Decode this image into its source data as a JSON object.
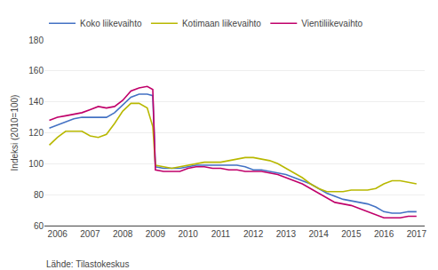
{
  "chart_data": {
    "type": "line",
    "y_label": "Indeksi (2010=100)",
    "annotations": [
      "Lähde: Tilastokeskus"
    ],
    "xlim": [
      2005.6,
      2017.25
    ],
    "xticks": [
      2006,
      2007,
      2008,
      2009,
      2010,
      2011,
      2012,
      2013,
      2014,
      2015,
      2016,
      2017
    ],
    "ylim": [
      60,
      180
    ],
    "yticks": [
      60,
      80,
      100,
      120,
      140,
      160,
      180
    ],
    "grid": "y",
    "legend": "top",
    "x": [
      2005.75,
      2006.0,
      2006.25,
      2006.5,
      2006.75,
      2007.0,
      2007.25,
      2007.5,
      2007.75,
      2008.0,
      2008.25,
      2008.5,
      2008.75,
      2008.92,
      2009.0,
      2009.25,
      2009.5,
      2009.75,
      2010.0,
      2010.25,
      2010.5,
      2010.75,
      2011.0,
      2011.25,
      2011.5,
      2011.75,
      2012.0,
      2012.25,
      2012.5,
      2012.75,
      2013.0,
      2013.25,
      2013.5,
      2013.75,
      2014.0,
      2014.25,
      2014.5,
      2014.75,
      2015.0,
      2015.25,
      2015.5,
      2015.75,
      2016.0,
      2016.25,
      2016.5,
      2016.75,
      2017.0
    ],
    "series": [
      {
        "name": "Koko liikevaihto",
        "color": "#4472c4",
        "values": [
          123,
          125,
          127,
          129,
          130,
          130,
          130,
          130,
          133,
          138,
          143,
          145,
          145,
          144,
          98,
          97,
          97,
          97,
          98,
          99,
          99,
          99,
          99,
          99,
          99,
          98,
          96,
          96,
          95,
          94,
          93,
          91,
          89,
          87,
          84,
          81,
          79,
          77,
          76,
          75,
          74,
          72,
          69,
          68,
          68,
          69,
          69
        ]
      },
      {
        "name": "Kotimaan liikevaihto",
        "color": "#b8b800",
        "values": [
          112,
          117,
          121,
          121,
          121,
          118,
          117,
          119,
          126,
          134,
          139,
          139,
          136,
          124,
          99,
          98,
          97,
          98,
          99,
          100,
          101,
          101,
          101,
          102,
          103,
          104,
          104,
          103,
          102,
          100,
          97,
          94,
          91,
          87,
          84,
          82,
          82,
          82,
          83,
          83,
          83,
          84,
          87,
          89,
          89,
          88,
          87
        ]
      },
      {
        "name": "Vientiliikevaihto",
        "color": "#c0006a",
        "values": [
          128,
          130,
          131,
          132,
          133,
          135,
          137,
          136,
          137,
          141,
          147,
          149,
          150,
          148,
          96,
          95,
          95,
          95,
          97,
          98,
          98,
          97,
          97,
          96,
          96,
          95,
          95,
          95,
          94,
          93,
          91,
          89,
          87,
          84,
          81,
          78,
          75,
          74,
          73,
          71,
          69,
          67,
          65,
          65,
          65,
          66,
          66
        ]
      }
    ]
  }
}
